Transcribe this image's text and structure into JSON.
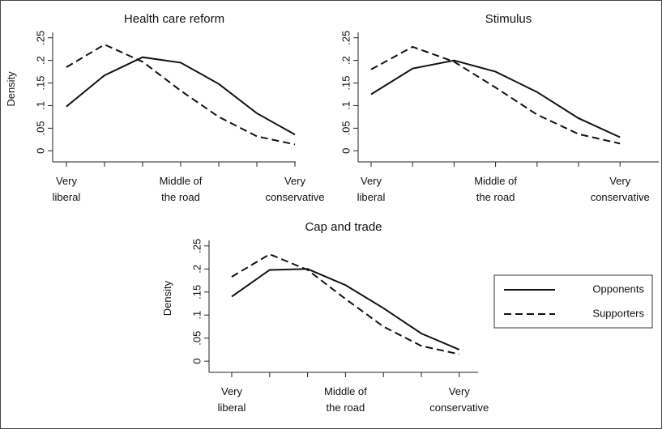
{
  "chart_data": [
    {
      "type": "line",
      "title": "Health care reform",
      "ylabel": "Density",
      "categories": [
        "Very\nliberal",
        null,
        null,
        "Middle of\nthe road",
        null,
        null,
        "Very\nconservative"
      ],
      "ylim": [
        -0.012,
        0.262
      ],
      "yticks": [
        0,
        {
          "value": 0.05,
          "label": ".05"
        },
        {
          "value": 0.1,
          "label": ".1"
        },
        {
          "value": 0.15,
          "label": ".15"
        },
        {
          "value": 0.2,
          "label": ".2"
        },
        {
          "value": 0.25,
          "label": ".25"
        }
      ],
      "series": [
        {
          "color": "#111111",
          "style": "solid",
          "values": [
            0.098,
            0.167,
            0.207,
            0.195,
            0.148,
            0.083,
            0.036
          ]
        },
        {
          "color": "#111111",
          "style": "dashed",
          "values": [
            0.185,
            0.235,
            0.197,
            0.133,
            0.075,
            0.032,
            0.014
          ]
        }
      ]
    },
    {
      "type": "line",
      "title": "Stimulus",
      "categories": [
        "Very\nliberal",
        null,
        null,
        "Middle of\nthe road",
        null,
        null,
        "Very\nconservative"
      ],
      "ylim": [
        -0.012,
        0.262
      ],
      "yticks": [
        0,
        {
          "value": 0.05,
          "label": ".05"
        },
        {
          "value": 0.1,
          "label": ".1"
        },
        {
          "value": 0.15,
          "label": ".15"
        },
        {
          "value": 0.2,
          "label": ".2"
        },
        {
          "value": 0.25,
          "label": ".25"
        }
      ],
      "series": [
        {
          "color": "#111111",
          "style": "solid",
          "values": [
            0.125,
            0.182,
            0.2,
            0.175,
            0.13,
            0.072,
            0.03
          ]
        },
        {
          "color": "#111111",
          "style": "dashed",
          "values": [
            0.18,
            0.23,
            0.197,
            0.14,
            0.08,
            0.037,
            0.016
          ]
        }
      ]
    },
    {
      "type": "line",
      "title": "Cap and trade",
      "ylabel": "Density",
      "legend": "right",
      "categories": [
        "Very\nliberal",
        null,
        null,
        "Middle of\nthe road",
        null,
        null,
        "Very\nconservative"
      ],
      "ylim": [
        -0.012,
        0.262
      ],
      "yticks": [
        0,
        {
          "value": 0.05,
          "label": ".05"
        },
        {
          "value": 0.1,
          "label": ".1"
        },
        {
          "value": 0.15,
          "label": ".15"
        },
        {
          "value": 0.2,
          "label": ".2"
        },
        {
          "value": 0.25,
          "label": ".25"
        }
      ],
      "series": [
        {
          "name": "Opponents",
          "color": "#111111",
          "style": "solid",
          "values": [
            0.14,
            0.198,
            0.2,
            0.165,
            0.115,
            0.06,
            0.025
          ]
        },
        {
          "name": "Supporters",
          "color": "#111111",
          "style": "dashed",
          "values": [
            0.183,
            0.232,
            0.198,
            0.135,
            0.075,
            0.033,
            0.015
          ]
        }
      ]
    }
  ]
}
